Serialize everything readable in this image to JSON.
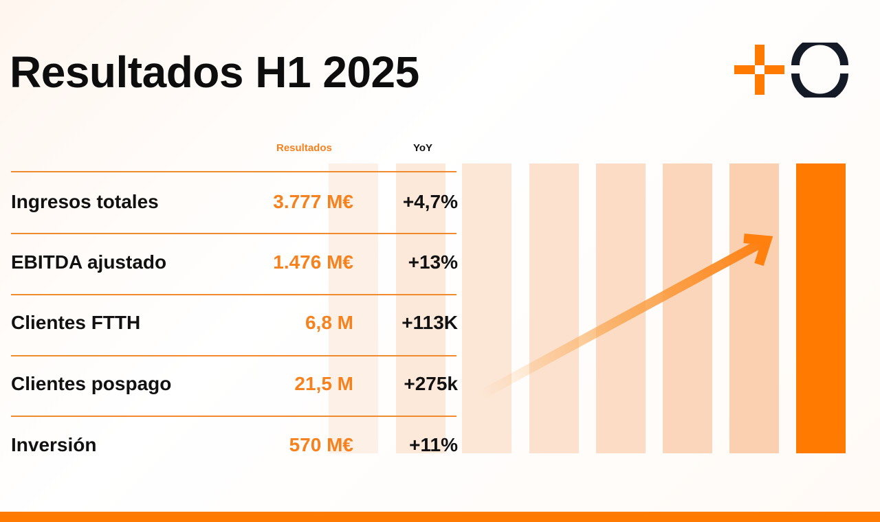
{
  "title": "Resultados H1 2025",
  "colors": {
    "accent": "#ff7a00",
    "text": "#0d0d0d"
  },
  "table": {
    "headers": {
      "results": "Resultados",
      "yoy": "YoY"
    },
    "rows": [
      {
        "label": "Ingresos totales",
        "value": "3.777 M€",
        "yoy": "+4,7%"
      },
      {
        "label": "EBITDA ajustado",
        "value": "1.476 M€",
        "yoy": "+13%"
      },
      {
        "label": "Clientes FTTH",
        "value": "6,8 M",
        "yoy": "+113K"
      },
      {
        "label": "Clientes pospago",
        "value": "21,5 M",
        "yoy": "+275k"
      },
      {
        "label": "Inversión",
        "value": "570 M€",
        "yoy": "+11%"
      }
    ]
  }
}
